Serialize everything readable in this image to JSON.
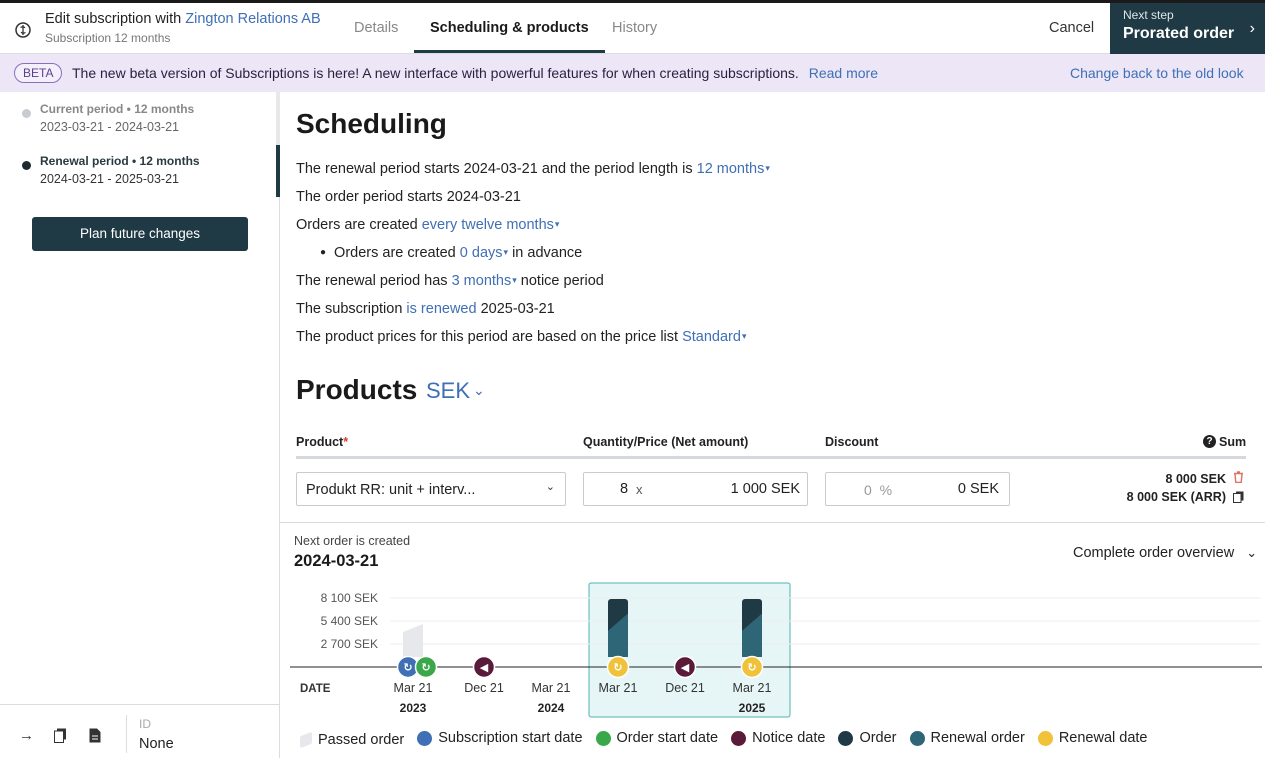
{
  "header": {
    "title_prefix": "Edit subscription with",
    "customer": "Zington Relations AB",
    "subtitle": "Subscription 12 months",
    "tabs": [
      {
        "label": "Details"
      },
      {
        "label": "Scheduling & products"
      },
      {
        "label": "History"
      }
    ],
    "cancel_label": "Cancel",
    "next_step_label": "Next step",
    "next_step_action": "Prorated order"
  },
  "banner": {
    "badge": "BETA",
    "text": "The new beta version of Subscriptions is here! A new interface with powerful features for when creating subscriptions.",
    "read_more": "Read more",
    "change_back": "Change back to the old look"
  },
  "sidebar": {
    "periods": [
      {
        "title": "Current period • 12 months",
        "dates": "2023-03-21 - 2024-03-21"
      },
      {
        "title": "Renewal period • 12 months",
        "dates": "2024-03-21 - 2025-03-21"
      }
    ],
    "plan_button": "Plan future changes",
    "id_label": "ID",
    "id_value": "None"
  },
  "scheduling": {
    "title": "Scheduling",
    "l1_a": "The renewal period starts 2024-03-21 and the period length is",
    "l1_link": "12 months",
    "l2": "The order period starts 2024-03-21",
    "l3_a": "Orders are created",
    "l3_link": "every twelve months",
    "l4_a": "Orders are created",
    "l4_link": "0 days",
    "l4_b": "in advance",
    "l5_a": "The renewal period has",
    "l5_link": "3 months",
    "l5_b": "notice period",
    "l6_a": "The subscription",
    "l6_link": "is renewed",
    "l6_b": "2025-03-21",
    "l7_a": "The product prices for this period are based on the price list",
    "l7_link": "Standard"
  },
  "products": {
    "title": "Products",
    "currency": "SEK",
    "col_product": "Product",
    "col_required": "*",
    "col_qty": "Quantity/Price (Net amount)",
    "col_discount": "Discount",
    "col_sum": "Sum",
    "row": {
      "product": "Produkt RR: unit + interv...",
      "quantity": "8",
      "x": "x",
      "price": "1 000 SEK",
      "discount_pct": "0",
      "pct_sign": "%",
      "discount_amount": "0 SEK",
      "sum": "8 000 SEK",
      "sum_arr": "8 000 SEK (ARR)"
    }
  },
  "next_order": {
    "label": "Next order is created",
    "date": "2024-03-21",
    "overview": "Complete order overview"
  },
  "chart_data": {
    "type": "bar",
    "y_ticks": [
      "8 100 SEK",
      "5 400 SEK",
      "2 700 SEK"
    ],
    "x_axis_label": "DATE",
    "x_ticks": [
      {
        "label": "Mar 21",
        "year": "2023"
      },
      {
        "label": "Dec 21",
        "year": ""
      },
      {
        "label": "Mar 21",
        "year": "2024"
      },
      {
        "label": "Mar 21",
        "year": ""
      },
      {
        "label": "Dec 21",
        "year": ""
      },
      {
        "label": "Mar 21",
        "year": "2025"
      }
    ],
    "bars": [
      {
        "date": "2023-03-21",
        "value": 3600,
        "kind": "passed"
      },
      {
        "date": "2024-03-21",
        "value": 8000,
        "kind": "renewal"
      },
      {
        "date": "2025-03-21",
        "value": 8000,
        "kind": "renewal"
      }
    ],
    "ylim": [
      0,
      9000
    ],
    "highlight_range": [
      "2024-03-21",
      "2025-03-21"
    ],
    "markers": [
      {
        "date": "2023-03-21",
        "kind": "subscription-start"
      },
      {
        "date": "2023-03-21",
        "kind": "order-start"
      },
      {
        "date": "2023-12-21",
        "kind": "notice"
      },
      {
        "date": "2024-03-21",
        "kind": "renewal-date"
      },
      {
        "date": "2024-12-21",
        "kind": "notice"
      },
      {
        "date": "2025-03-21",
        "kind": "renewal-date"
      }
    ],
    "colors": {
      "passed": "#e6e8eb",
      "order": "#1f3a44",
      "renewal": "#2f6677",
      "subscription_start": "#3f6fb5",
      "order_start": "#3aa84a",
      "notice": "#5a1a3a",
      "renewal_date": "#f0c23a",
      "highlight": "#e6f6f6"
    }
  },
  "legend": [
    {
      "label": "Passed order",
      "color": "#e6e8eb"
    },
    {
      "label": "Subscription start date",
      "color": "#3f6fb5"
    },
    {
      "label": "Order start date",
      "color": "#3aa84a"
    },
    {
      "label": "Notice date",
      "color": "#5a1a3a"
    },
    {
      "label": "Order",
      "color": "#1f3a44"
    },
    {
      "label": "Renewal order",
      "color": "#2f6677"
    },
    {
      "label": "Renewal date",
      "color": "#f0c23a"
    }
  ]
}
